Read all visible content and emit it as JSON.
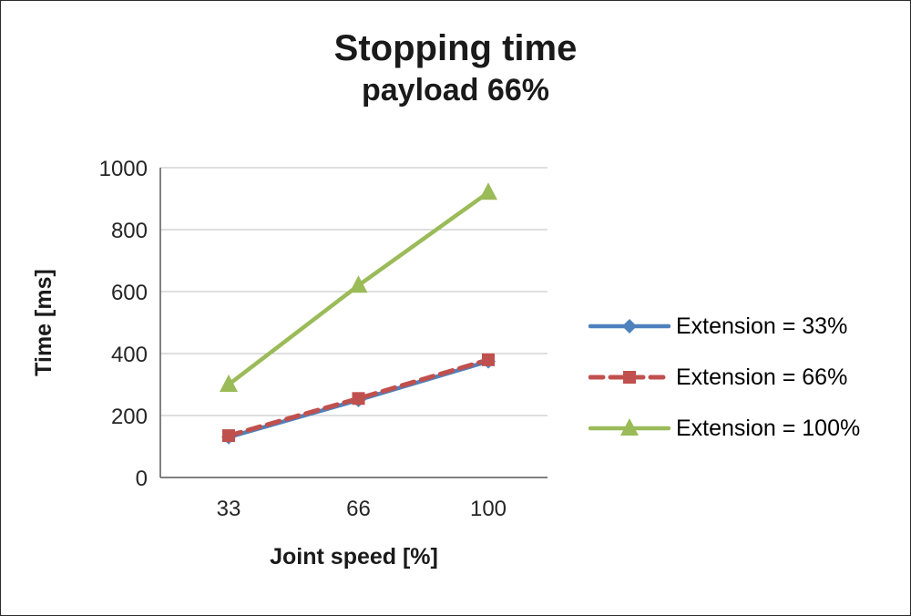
{
  "chart_data": {
    "type": "line",
    "title": "Stopping time",
    "subtitle": "payload 66%",
    "xlabel": "Joint speed [%]",
    "ylabel": "Time [ms]",
    "categories": [
      "33",
      "66",
      "100"
    ],
    "ylim": [
      0,
      1000
    ],
    "ytick_step": 200,
    "grid": true,
    "grid_color": "#bfbfbf",
    "axis_color": "#595959",
    "legend_position": "right",
    "series": [
      {
        "name": "Extension = 33%",
        "values": [
          130,
          250,
          375
        ],
        "color": "#4F81BD",
        "marker": "diamond",
        "dash": "solid"
      },
      {
        "name": "Extension = 66%",
        "values": [
          135,
          255,
          380
        ],
        "color": "#C0504D",
        "marker": "square",
        "dash": "dashed"
      },
      {
        "name": "Extension = 100%",
        "values": [
          300,
          620,
          920
        ],
        "color": "#9BBB59",
        "marker": "triangle",
        "dash": "solid"
      }
    ]
  }
}
